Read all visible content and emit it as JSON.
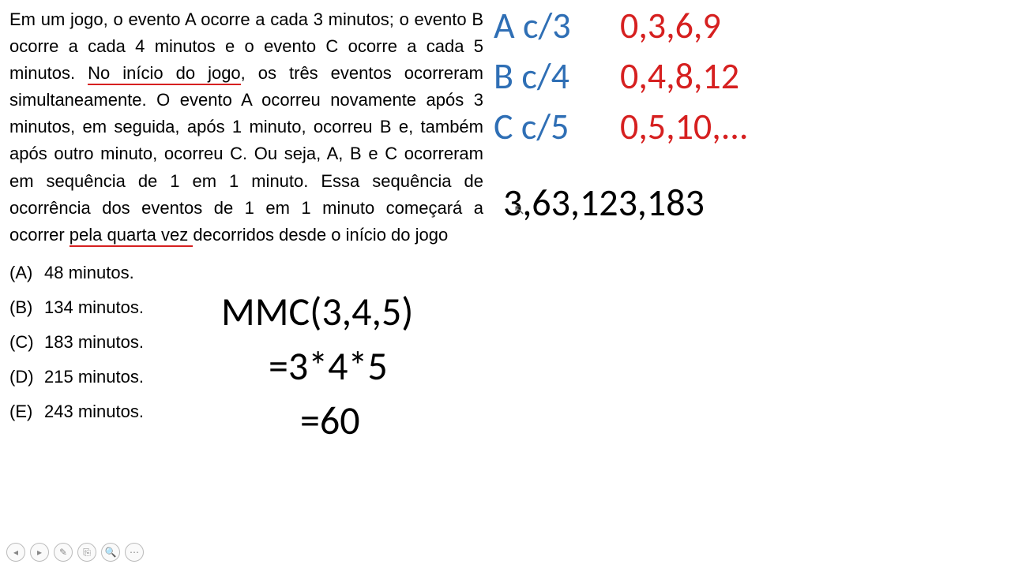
{
  "problem": {
    "pre1": "Em um jogo, o evento A ocorre a cada 3 minutos; o evento B ocorre a cada 4 minutos e o evento C ocorre a cada 5 minutos. ",
    "u1": "No início do jogo",
    "mid": ", os três eventos ocorreram simultaneamente. O evento A ocorreu novamente após 3 minutos, em seguida, após 1 minuto, ocorreu B e, também após outro minuto, ocorreu C. Ou seja, A, B e C ocorreram em sequência de 1 em 1 minuto. Essa sequência de ocorrência dos eventos de 1 em 1 minuto começará a ocorrer ",
    "u2": "pela quarta vez ",
    "post": "decorridos desde o início do jogo"
  },
  "options": [
    {
      "label": "(A)",
      "text": "48 minutos."
    },
    {
      "label": "(B)",
      "text": "134 minutos."
    },
    {
      "label": "(C)",
      "text": "183 minutos."
    },
    {
      "label": "(D)",
      "text": "215 minutos."
    },
    {
      "label": "(E)",
      "text": "243 minutos."
    }
  ],
  "events": [
    {
      "label": "A c/3",
      "vals": "0,3,6,9"
    },
    {
      "label": "B c/4",
      "vals": "0,4,8,12"
    },
    {
      "label": "C c/5",
      "vals": "0,5,10,..."
    }
  ],
  "sequence": "3,63,123,183",
  "mmc": {
    "l1": "MMC(3,4,5)",
    "l2": "=3*4*5",
    "l3": "=60"
  },
  "toolbar_icons": [
    "◂",
    "▸",
    "✎",
    "⎘",
    "🔍",
    "⋯"
  ],
  "colors": {
    "blue": "#2f6fb5",
    "red": "#d62020",
    "black": "#000000",
    "bg": "#ffffff"
  }
}
